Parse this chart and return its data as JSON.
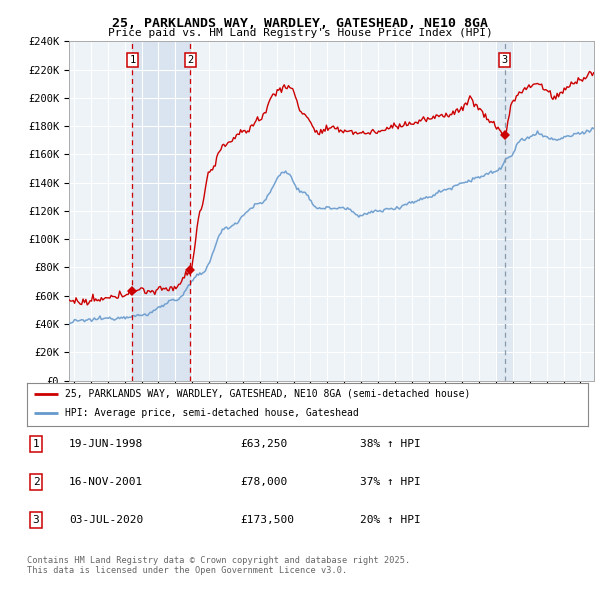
{
  "title": "25, PARKLANDS WAY, WARDLEY, GATESHEAD, NE10 8GA",
  "subtitle": "Price paid vs. HM Land Registry's House Price Index (HPI)",
  "ylim": [
    0,
    240000
  ],
  "yticks": [
    0,
    20000,
    40000,
    60000,
    80000,
    100000,
    120000,
    140000,
    160000,
    180000,
    200000,
    220000,
    240000
  ],
  "ytick_labels": [
    "£0",
    "£20K",
    "£40K",
    "£60K",
    "£80K",
    "£100K",
    "£120K",
    "£140K",
    "£160K",
    "£180K",
    "£200K",
    "£220K",
    "£240K"
  ],
  "xlim_start": 1994.7,
  "xlim_end": 2025.8,
  "sale_dates": [
    1998.46,
    2001.88,
    2020.5
  ],
  "sale_prices": [
    63250,
    78000,
    173500
  ],
  "sale_labels": [
    "1",
    "2",
    "3"
  ],
  "sale_info": [
    {
      "label": "1",
      "date": "19-JUN-1998",
      "price": "£63,250",
      "hpi": "38% ↑ HPI"
    },
    {
      "label": "2",
      "date": "16-NOV-2001",
      "price": "£78,000",
      "hpi": "37% ↑ HPI"
    },
    {
      "label": "3",
      "date": "03-JUL-2020",
      "price": "£173,500",
      "hpi": "20% ↑ HPI"
    }
  ],
  "legend_entries": [
    {
      "label": "25, PARKLANDS WAY, WARDLEY, GATESHEAD, NE10 8GA (semi-detached house)",
      "color": "#cc0000"
    },
    {
      "label": "HPI: Average price, semi-detached house, Gateshead",
      "color": "#6699cc"
    }
  ],
  "copyright_text": "Contains HM Land Registry data © Crown copyright and database right 2025.\nThis data is licensed under the Open Government Licence v3.0.",
  "red_line_color": "#cc0000",
  "blue_line_color": "#6699cc",
  "plot_bg": "#eef3f8",
  "grid_color": "#ffffff",
  "shade_color": "#ccdaeb",
  "hpi_anchors": {
    "1994.7": 40000,
    "1995.0": 42000,
    "1997.0": 44000,
    "1999.0": 46000,
    "2001.0": 57000,
    "2002.5": 75000,
    "2004.0": 108000,
    "2006.0": 125000,
    "2007.5": 148000,
    "2008.5": 133000,
    "2009.5": 122000,
    "2011.0": 122000,
    "2012.0": 117000,
    "2013.0": 120000,
    "2014.0": 122000,
    "2015.0": 126000,
    "2016.0": 130000,
    "2017.0": 135000,
    "2018.0": 140000,
    "2019.0": 144000,
    "2020.0": 148000,
    "2020.8": 158000,
    "2021.5": 170000,
    "2022.5": 175000,
    "2023.0": 172000,
    "2023.5": 170000,
    "2024.0": 172000,
    "2025.0": 175000,
    "2025.8": 178000
  },
  "prop_anchors": {
    "1994.7": 57000,
    "1995.5": 55000,
    "1996.5": 57000,
    "1997.5": 59000,
    "1998.46": 63250,
    "1999.0": 64000,
    "1999.5": 63000,
    "2000.0": 64000,
    "2001.0": 66000,
    "2001.88": 78000,
    "2002.5": 120000,
    "2003.0": 148000,
    "2004.0": 168000,
    "2005.0": 175000,
    "2006.0": 185000,
    "2007.0": 205000,
    "2007.8": 208000,
    "2008.5": 190000,
    "2009.5": 175000,
    "2010.0": 178000,
    "2011.0": 177000,
    "2012.0": 175000,
    "2013.0": 176000,
    "2014.0": 180000,
    "2015.0": 182000,
    "2016.0": 185000,
    "2017.0": 188000,
    "2018.0": 192000,
    "2018.5": 200000,
    "2019.0": 192000,
    "2019.5": 185000,
    "2020.0": 180000,
    "2020.5": 173500,
    "2021.0": 198000,
    "2021.5": 205000,
    "2022.0": 208000,
    "2022.5": 210000,
    "2023.0": 205000,
    "2023.5": 200000,
    "2024.0": 205000,
    "2024.5": 210000,
    "2025.0": 213000,
    "2025.8": 218000
  }
}
